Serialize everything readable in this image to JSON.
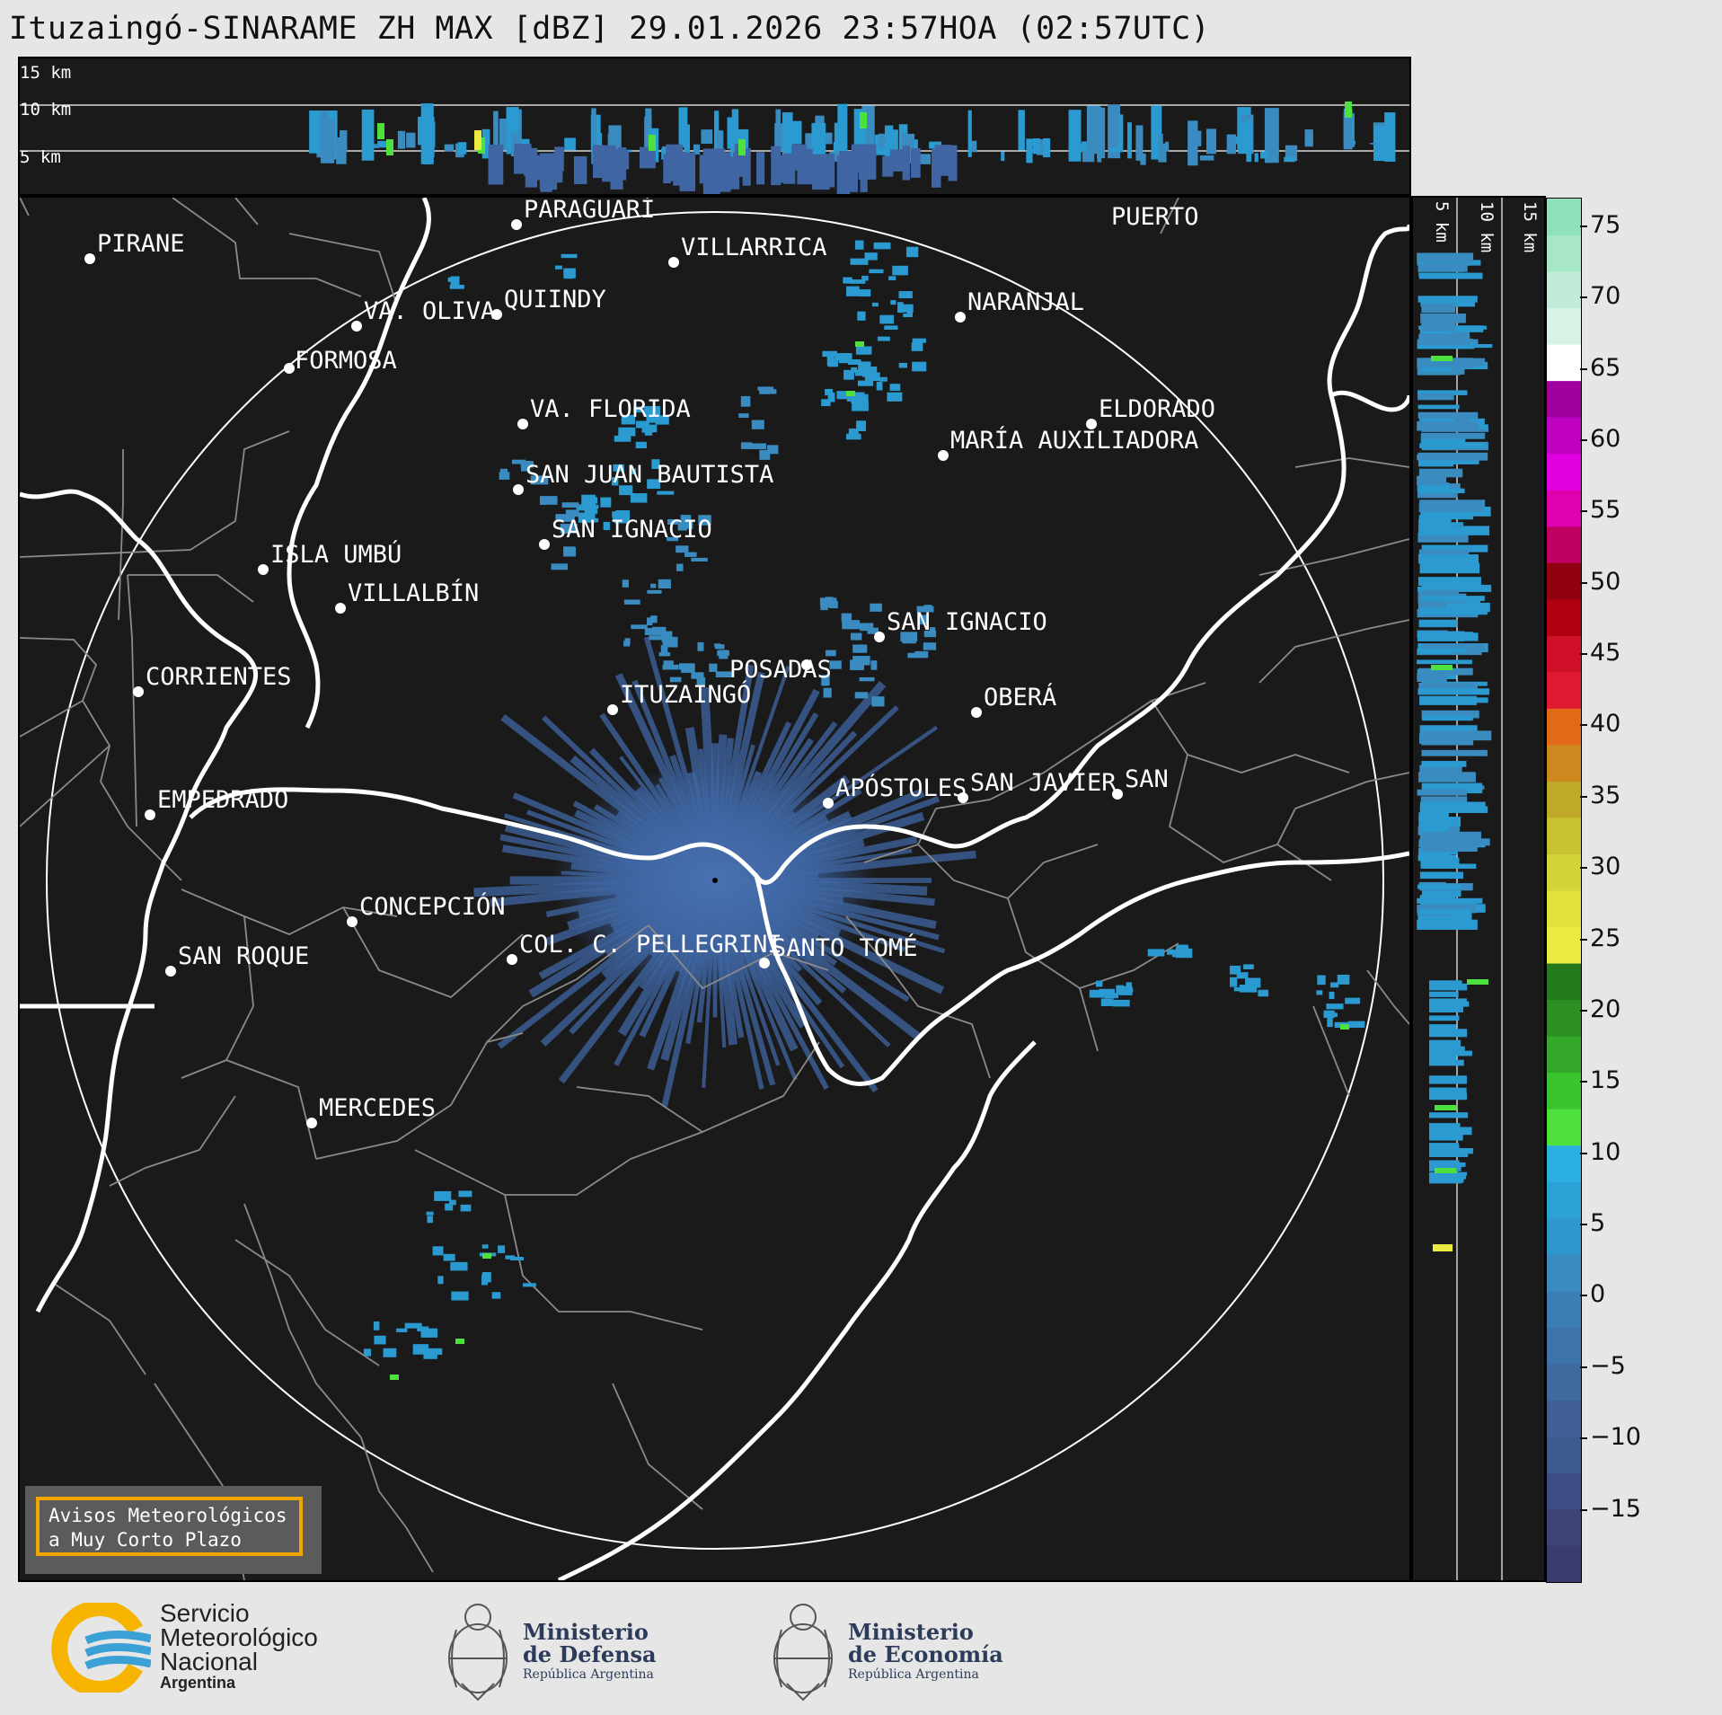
{
  "title": "Ituzaingó-SINARAME ZH MAX [dBZ] 29.01.2026 23:57HOA (02:57UTC)",
  "top_panel": {
    "height_labels": [
      "15 km",
      "10 km",
      "5 km"
    ]
  },
  "side_panel": {
    "height_labels": [
      "5 km",
      "10 km",
      "15 km"
    ]
  },
  "colorbar": {
    "ticks": [
      "75",
      "70",
      "65",
      "60",
      "55",
      "50",
      "45",
      "40",
      "35",
      "30",
      "25",
      "20",
      "15",
      "10",
      "5",
      "0",
      "−5",
      "−10",
      "−15"
    ],
    "colors": [
      "#3b3b6e",
      "#3d4478",
      "#3e4e85",
      "#3f5a8f",
      "#405f95",
      "#3f6aa0",
      "#3e73aa",
      "#3a7eb5",
      "#3a8bbf",
      "#2f97cc",
      "#2ba2d6",
      "#29b0e0",
      "#4ee03c",
      "#3cc42e",
      "#34a82a",
      "#2e8f24",
      "#257a1e",
      "#eaea40",
      "#e2e23a",
      "#d4d436",
      "#c8c232",
      "#c0a828",
      "#cc8a1e",
      "#e06a18",
      "#e01830",
      "#d01028",
      "#b00010",
      "#900010",
      "#c00060",
      "#e000b0",
      "#e000e0",
      "#c000c0",
      "#a000a0",
      "#ffffff",
      "#d8f2e6",
      "#c0ecd8",
      "#a8e6ca",
      "#90e0bc"
    ]
  },
  "cities": [
    {
      "name": "PIRANE"
    },
    {
      "name": "PARAGUARÍ"
    },
    {
      "name": "VILLARRICA"
    },
    {
      "name": "VA. OLIVA"
    },
    {
      "name": "QUIINDY"
    },
    {
      "name": "NARANJAL"
    },
    {
      "name": "FORMOSA"
    },
    {
      "name": "VA. FLORIDA"
    },
    {
      "name": "ELDORADO"
    },
    {
      "name": "MARÍA AUXILIADORA"
    },
    {
      "name": "SAN JUAN BAUTISTA"
    },
    {
      "name": "SAN IGNACIO"
    },
    {
      "name": "ISLA UMBÚ"
    },
    {
      "name": "VILLALBÍN"
    },
    {
      "name": "SAN IGNACIO"
    },
    {
      "name": "POSADAS"
    },
    {
      "name": "CORRIENTES"
    },
    {
      "name": "ITUZAINGÓ"
    },
    {
      "name": "OBERÁ"
    },
    {
      "name": "APÓSTOLES"
    },
    {
      "name": "SAN JAVIER"
    },
    {
      "name": "SAN"
    },
    {
      "name": "EMPEDRADO"
    },
    {
      "name": "CONCEPCIÓN"
    },
    {
      "name": "COL. C. PELLEGRINI"
    },
    {
      "name": "SANTO TOMÉ"
    },
    {
      "name": "SAN ROQUE"
    },
    {
      "name": "MERCEDES"
    },
    {
      "name": "PUERTO"
    }
  ],
  "warning_box": {
    "line1": "Avisos Meteorológicos",
    "line2": "a Muy Corto Plazo"
  },
  "footer": {
    "smn_line1": "Servicio",
    "smn_line2": "Meteorológico",
    "smn_line3": "Nacional",
    "smn_line4": "Argentina",
    "defensa_line1": "Ministerio",
    "defensa_line2": "de Defensa",
    "defensa_line3": "República Argentina",
    "economia_line1": "Ministerio",
    "economia_line2": "de Economía",
    "economia_line3": "República Argentina"
  }
}
